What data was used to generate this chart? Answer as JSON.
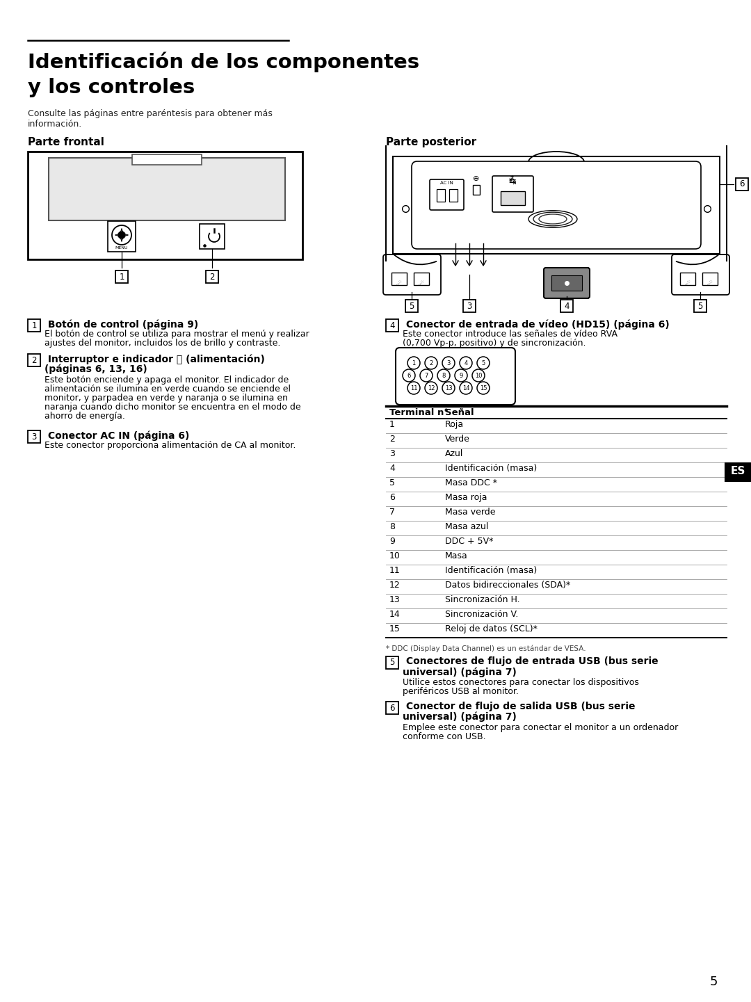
{
  "bg_color": "#ffffff",
  "title_line1": "Identificación de los componentes",
  "title_line2": "y los controles",
  "subtitle": "Consulte las páginas entre paréntesis para obtener más\ninformación.",
  "section_left": "Parte frontal",
  "section_right": "Parte posterior",
  "table_headers": [
    "Terminal n°",
    "Señal"
  ],
  "table_rows": [
    [
      "1",
      "Roja"
    ],
    [
      "2",
      "Verde"
    ],
    [
      "3",
      "Azul"
    ],
    [
      "4",
      "Identificación (masa)"
    ],
    [
      "5",
      "Masa DDC *"
    ],
    [
      "6",
      "Masa roja"
    ],
    [
      "7",
      "Masa verde"
    ],
    [
      "8",
      "Masa azul"
    ],
    [
      "9",
      "DDC + 5V*"
    ],
    [
      "10",
      "Masa"
    ],
    [
      "11",
      "Identificación (masa)"
    ],
    [
      "12",
      "Datos bidireccionales (SDA)*"
    ],
    [
      "13",
      "Sincronización H."
    ],
    [
      "14",
      "Sincronización V."
    ],
    [
      "15",
      "Reloj de datos (SCL)*"
    ]
  ],
  "footnote": "* DDC (Display Data Channel) es un estándar de VESA.",
  "page_num": "5",
  "es_label": "ES"
}
